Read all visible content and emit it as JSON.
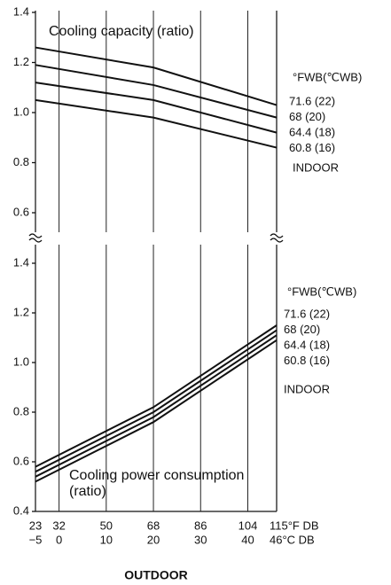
{
  "chart_data": [
    {
      "type": "line",
      "title": "Cooling capacity (ratio)",
      "x": [
        23,
        68,
        115
      ],
      "xlim": [
        23,
        115
      ],
      "ylim": [
        0.6,
        1.4
      ],
      "yticks": [
        0.6,
        0.8,
        {
          "value": 1.0,
          "label": "1.0"
        },
        1.2,
        1.4
      ],
      "legend_title": "°FWB(℃WB)",
      "legend_note": "INDOOR",
      "grid": true,
      "series": [
        {
          "name": "71.6 (22)",
          "color": "#111111",
          "values": [
            1.26,
            1.18,
            1.03
          ]
        },
        {
          "name": "68 (20)",
          "color": "#111111",
          "values": [
            1.19,
            1.11,
            0.98
          ]
        },
        {
          "name": "64.4 (18)",
          "color": "#111111",
          "values": [
            1.12,
            1.05,
            0.92
          ]
        },
        {
          "name": "60.8 (16)",
          "color": "#111111",
          "values": [
            1.05,
            0.98,
            0.86
          ]
        }
      ]
    },
    {
      "type": "line",
      "title": [
        "Cooling power consumption",
        "(ratio)"
      ],
      "x": [
        23,
        68,
        115
      ],
      "xlim": [
        23,
        115
      ],
      "ylim": [
        0.4,
        1.4
      ],
      "yticks": [
        0.4,
        0.6,
        0.8,
        {
          "value": 1.0,
          "label": "1.0"
        },
        1.2,
        1.4
      ],
      "xticks": [
        {
          "value": 23,
          "label": "23"
        },
        {
          "value": 32,
          "label": "32"
        },
        {
          "value": 50,
          "label": "50"
        },
        {
          "value": 68,
          "label": "68"
        },
        {
          "value": 86,
          "label": "86"
        },
        {
          "value": 104,
          "label": "104"
        },
        {
          "value": 115,
          "label": "115°F DB"
        }
      ],
      "x2ticks": [
        {
          "value": 23,
          "label": "−5"
        },
        {
          "value": 32,
          "label": "0"
        },
        {
          "value": 50,
          "label": "10"
        },
        {
          "value": 68,
          "label": "20"
        },
        {
          "value": 86,
          "label": "30"
        },
        {
          "value": 104,
          "label": "40"
        },
        {
          "value": 115,
          "label": "46°C DB"
        }
      ],
      "xlabel": "OUTDOOR",
      "legend_title": "°FWB(℃WB)",
      "legend_note": "INDOOR",
      "grid": true,
      "series": [
        {
          "name": "71.6 (22)",
          "color": "#111111",
          "values": [
            0.58,
            0.82,
            1.15
          ]
        },
        {
          "name": "68 (20)",
          "color": "#111111",
          "values": [
            0.56,
            0.8,
            1.13
          ]
        },
        {
          "name": "64.4 (18)",
          "color": "#111111",
          "values": [
            0.54,
            0.78,
            1.11
          ]
        },
        {
          "name": "60.8 (16)",
          "color": "#111111",
          "values": [
            0.52,
            0.76,
            1.09
          ]
        }
      ]
    }
  ]
}
